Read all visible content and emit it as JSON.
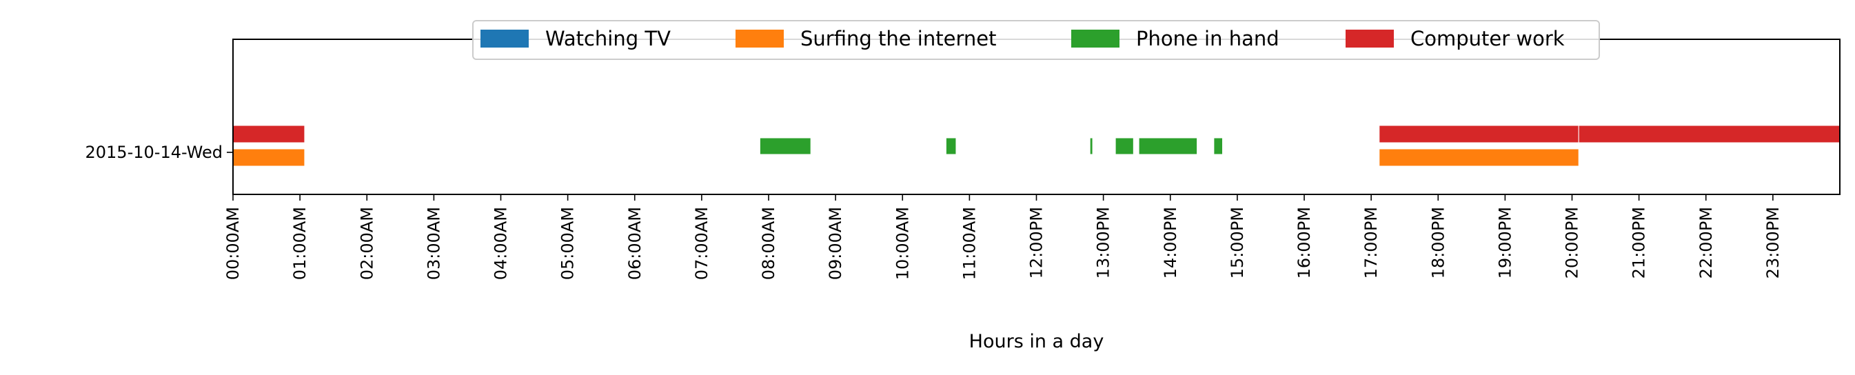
{
  "chart_data": {
    "type": "timeline",
    "title": "",
    "xlabel": "Hours in a day",
    "ylabel": "",
    "xlim": [
      0,
      24
    ],
    "x_unit": "hours",
    "y_categories": [
      "2015-10-14-Wed"
    ],
    "x_tick_labels": [
      "00:00AM",
      "01:00AM",
      "02:00AM",
      "03:00AM",
      "04:00AM",
      "05:00AM",
      "06:00AM",
      "07:00AM",
      "08:00AM",
      "09:00AM",
      "10:00AM",
      "11:00AM",
      "12:00PM",
      "13:00PM",
      "14:00PM",
      "15:00PM",
      "16:00PM",
      "17:00PM",
      "18:00PM",
      "19:00PM",
      "20:00PM",
      "21:00PM",
      "22:00PM",
      "23:00PM"
    ],
    "legend": {
      "placement": "upper center",
      "entries": [
        {
          "name": "Watching TV",
          "color": "#1f77b4"
        },
        {
          "name": "Surfing the internet",
          "color": "#ff7f0e"
        },
        {
          "name": "Phone in hand",
          "color": "#2ca02c"
        },
        {
          "name": "Computer work",
          "color": "#d62728"
        }
      ]
    },
    "series": [
      {
        "name": "Watching TV",
        "color": "#1f77b4",
        "lane": "center",
        "intervals": []
      },
      {
        "name": "Surfing the internet",
        "color": "#ff7f0e",
        "lane": "lower",
        "intervals": [
          [
            0.0,
            1.07
          ],
          [
            17.12,
            20.1
          ]
        ]
      },
      {
        "name": "Phone in hand",
        "color": "#2ca02c",
        "lane": "center",
        "intervals": [
          [
            7.87,
            8.63
          ],
          [
            10.65,
            10.8
          ],
          [
            12.8,
            12.84
          ],
          [
            13.18,
            13.45
          ],
          [
            13.53,
            14.4
          ],
          [
            14.65,
            14.78
          ]
        ]
      },
      {
        "name": "Computer work",
        "color": "#d62728",
        "lane": "upper",
        "intervals": [
          [
            0.0,
            1.07
          ],
          [
            17.12,
            20.1
          ],
          [
            20.1,
            24.0
          ]
        ]
      }
    ]
  }
}
